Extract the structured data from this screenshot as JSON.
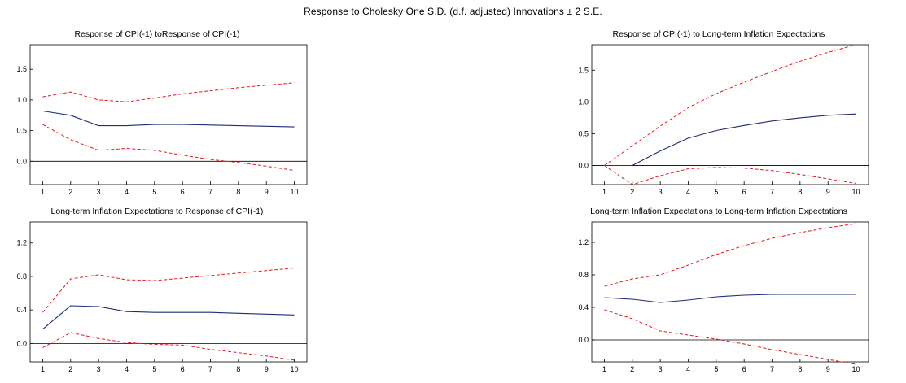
{
  "title": "Response to Cholesky One S.D. (d.f. adjusted) Innovations ± 2 S.E.",
  "colors": {
    "response": "#1f2d7a",
    "band": "#e8181e",
    "axis": "#000000"
  },
  "chart_data": [
    {
      "type": "line",
      "title": "Response of CPI(-1) toResponse of CPI(-1)",
      "x": [
        1,
        2,
        3,
        4,
        5,
        6,
        7,
        8,
        9,
        10
      ],
      "ylim": [
        -0.38,
        1.9
      ],
      "yticks": [
        0.0,
        0.5,
        1.0,
        1.5
      ],
      "ytick_labels": [
        "0.0",
        "0.5",
        "1.0",
        "1.5"
      ],
      "xtick_labels": [
        "1",
        "2",
        "3",
        "4",
        "5",
        "6",
        "7",
        "8",
        "9",
        "10"
      ],
      "grid": false,
      "series": [
        {
          "role": "response",
          "values": [
            0.82,
            0.75,
            0.58,
            0.58,
            0.6,
            0.6,
            0.59,
            0.58,
            0.57,
            0.56
          ]
        },
        {
          "role": "upper",
          "values": [
            1.05,
            1.13,
            1.0,
            0.97,
            1.03,
            1.1,
            1.15,
            1.2,
            1.24,
            1.28
          ]
        },
        {
          "role": "lower",
          "values": [
            0.6,
            0.35,
            0.18,
            0.21,
            0.18,
            0.1,
            0.03,
            -0.02,
            -0.08,
            -0.15
          ]
        }
      ]
    },
    {
      "type": "line",
      "title": "Response of CPI(-1) to Long-term Inflation Expectations",
      "x": [
        1,
        2,
        3,
        4,
        5,
        6,
        7,
        8,
        9,
        10
      ],
      "ylim": [
        -0.3,
        1.9
      ],
      "yticks": [
        0.0,
        0.5,
        1.0,
        1.5
      ],
      "ytick_labels": [
        "0.0",
        "0.5",
        "1.0",
        "1.5"
      ],
      "xtick_labels": [
        "1",
        "2",
        "3",
        "4",
        "5",
        "6",
        "7",
        "8",
        "9",
        "10"
      ],
      "grid": false,
      "series": [
        {
          "role": "response",
          "values": [
            0.0,
            0.0,
            0.23,
            0.43,
            0.55,
            0.63,
            0.7,
            0.75,
            0.79,
            0.81
          ]
        },
        {
          "role": "upper",
          "values": [
            0.0,
            0.31,
            0.62,
            0.91,
            1.13,
            1.31,
            1.48,
            1.64,
            1.78,
            1.9
          ]
        },
        {
          "role": "lower",
          "values": [
            0.0,
            -0.3,
            -0.16,
            -0.05,
            -0.03,
            -0.04,
            -0.08,
            -0.14,
            -0.21,
            -0.28
          ]
        }
      ]
    },
    {
      "type": "line",
      "title": "Long-term Inflation Expectations to Response of CPI(-1)",
      "x": [
        1,
        2,
        3,
        4,
        5,
        6,
        7,
        8,
        9,
        10
      ],
      "ylim": [
        -0.22,
        1.45
      ],
      "yticks": [
        0.0,
        0.4,
        0.8,
        1.2
      ],
      "ytick_labels": [
        "0.0",
        "0.4",
        "0.8",
        "1.2"
      ],
      "xtick_labels": [
        "1",
        "2",
        "3",
        "4",
        "5",
        "6",
        "7",
        "8",
        "9",
        "10"
      ],
      "grid": false,
      "series": [
        {
          "role": "response",
          "values": [
            0.17,
            0.45,
            0.44,
            0.38,
            0.37,
            0.37,
            0.37,
            0.36,
            0.35,
            0.34
          ]
        },
        {
          "role": "upper",
          "values": [
            0.37,
            0.77,
            0.82,
            0.76,
            0.75,
            0.78,
            0.81,
            0.84,
            0.87,
            0.9
          ]
        },
        {
          "role": "lower",
          "values": [
            -0.05,
            0.13,
            0.06,
            0.01,
            -0.01,
            -0.02,
            -0.07,
            -0.11,
            -0.15,
            -0.2
          ]
        }
      ]
    },
    {
      "type": "line",
      "title": "Long-term Inflation Expectations to Long-term Inflation Expectations",
      "x": [
        1,
        2,
        3,
        4,
        5,
        6,
        7,
        8,
        9,
        10
      ],
      "ylim": [
        -0.27,
        1.45
      ],
      "yticks": [
        0.0,
        0.4,
        0.8,
        1.2
      ],
      "ytick_labels": [
        "0.0",
        "0.4",
        "0.8",
        "1.2"
      ],
      "xtick_labels": [
        "1",
        "2",
        "3",
        "4",
        "5",
        "6",
        "7",
        "8",
        "9",
        "10"
      ],
      "grid": false,
      "series": [
        {
          "role": "response",
          "values": [
            0.52,
            0.5,
            0.46,
            0.49,
            0.53,
            0.55,
            0.56,
            0.56,
            0.56,
            0.56
          ]
        },
        {
          "role": "upper",
          "values": [
            0.66,
            0.75,
            0.8,
            0.92,
            1.05,
            1.16,
            1.25,
            1.32,
            1.38,
            1.43
          ]
        },
        {
          "role": "lower",
          "values": [
            0.37,
            0.26,
            0.11,
            0.06,
            0.01,
            -0.05,
            -0.12,
            -0.18,
            -0.24,
            -0.3
          ]
        }
      ]
    }
  ]
}
